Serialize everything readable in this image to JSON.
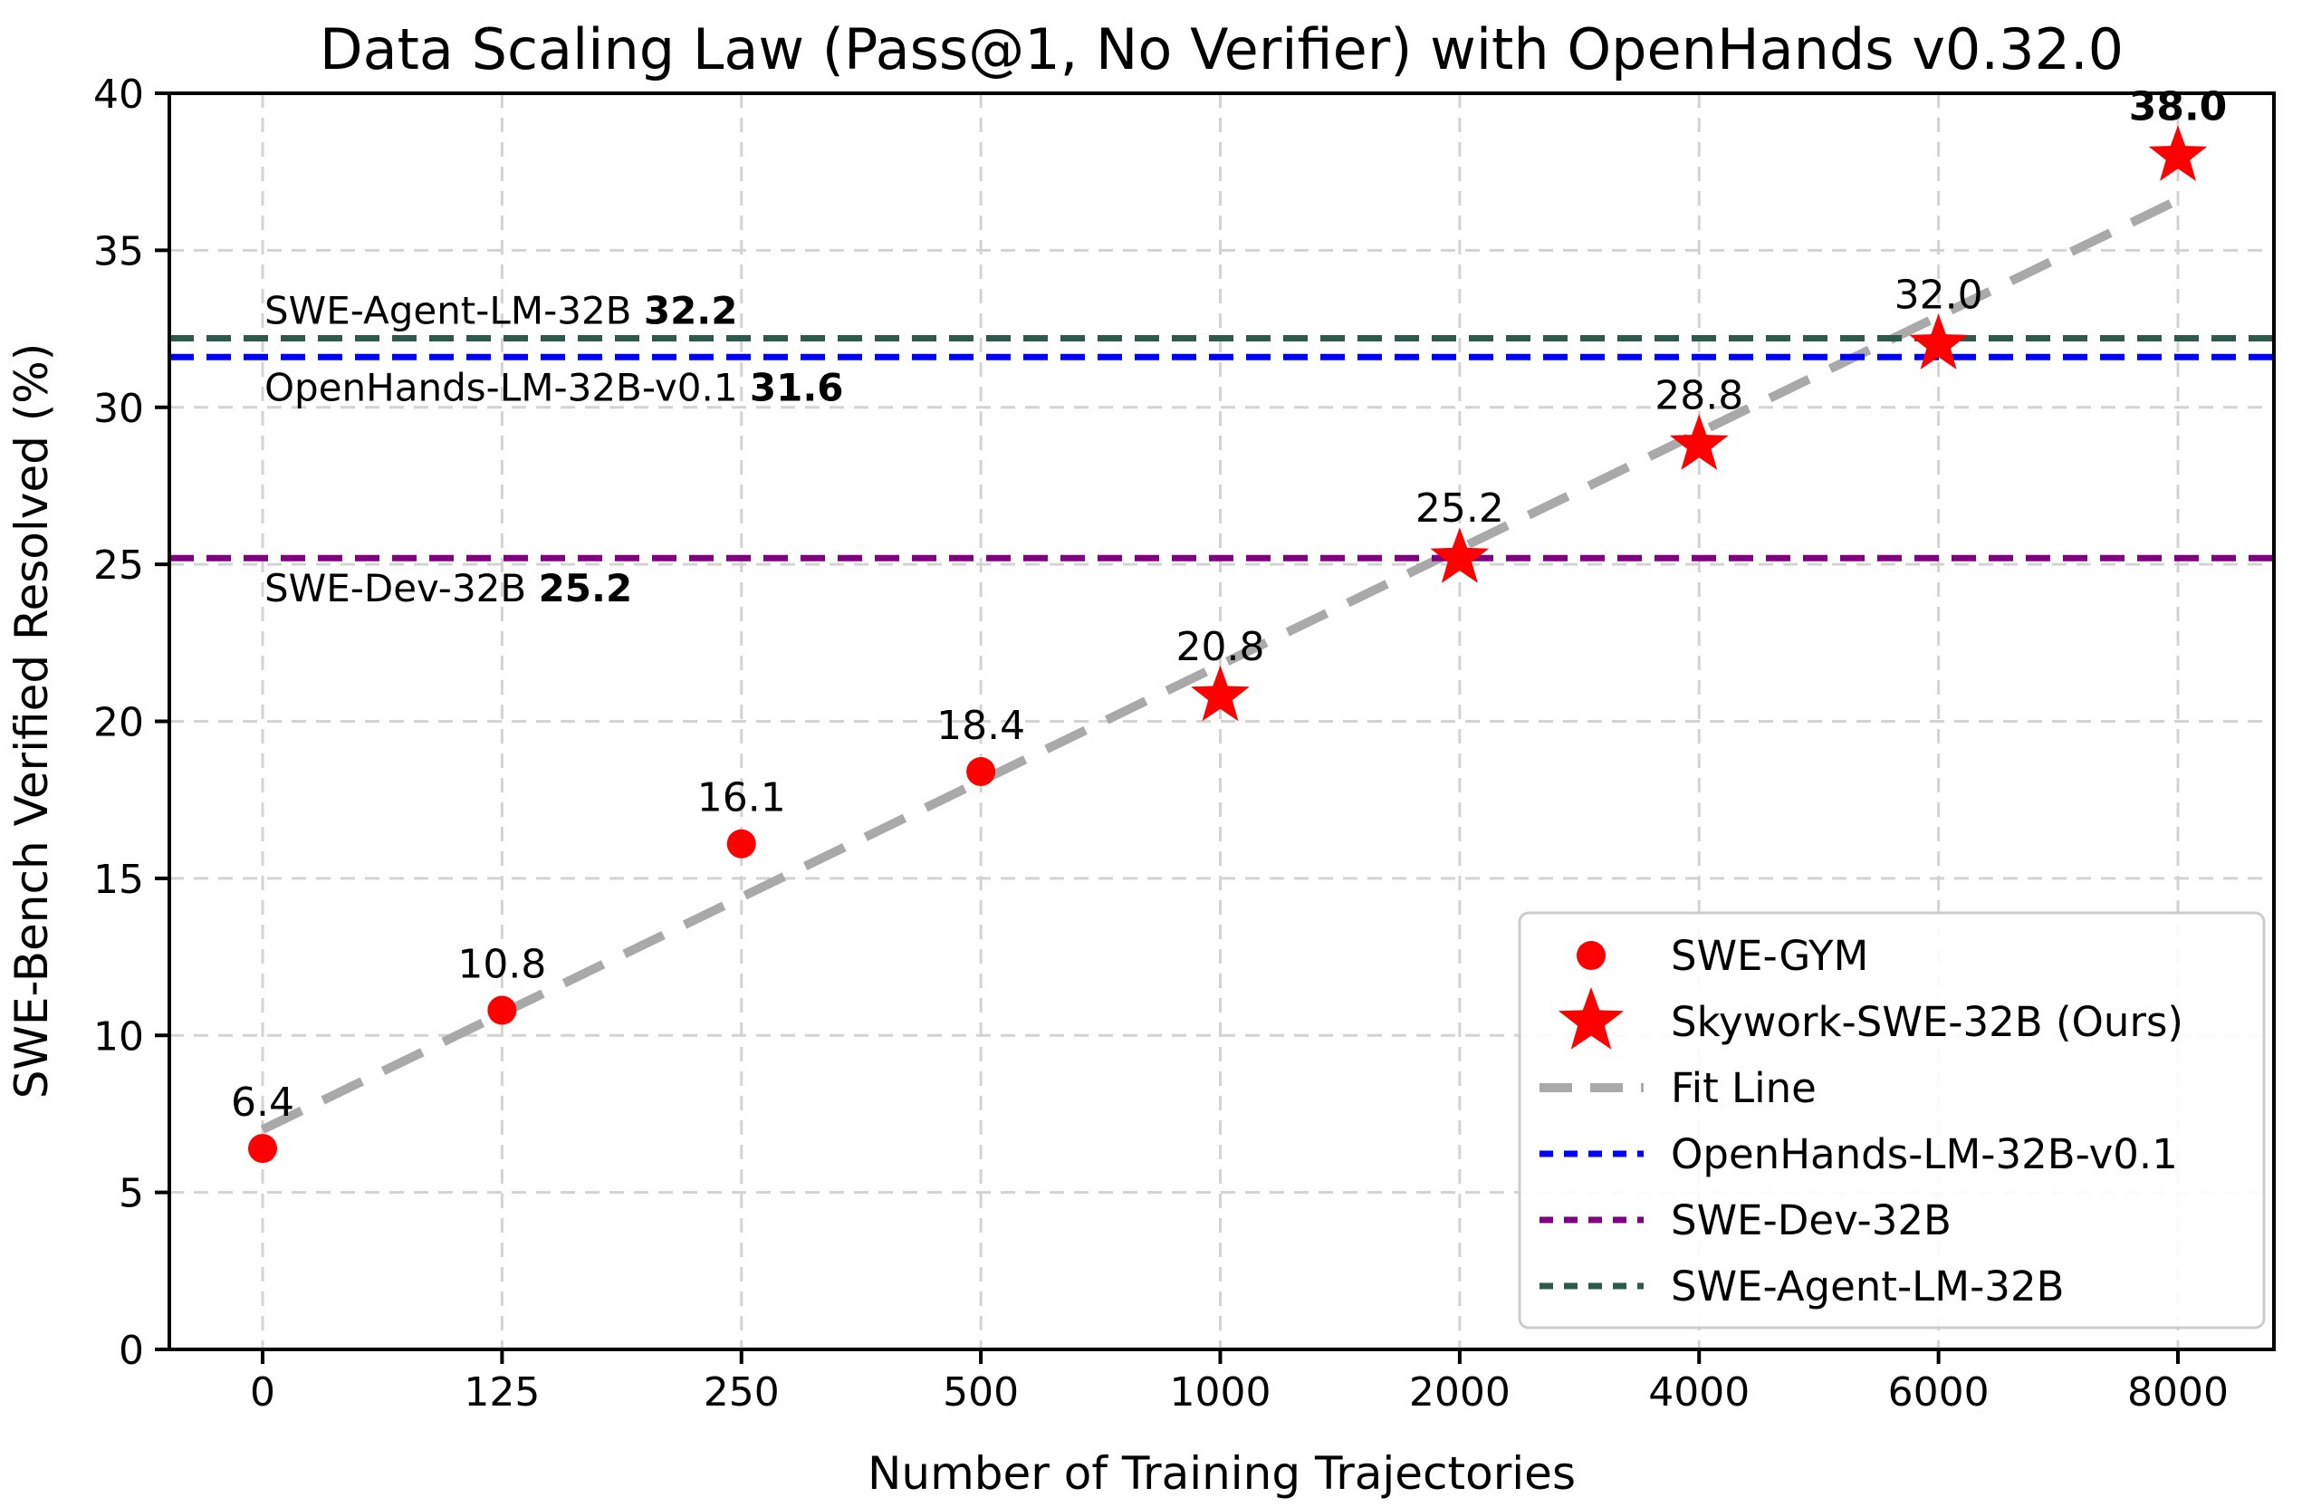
{
  "chart_data": {
    "type": "scatter",
    "title": "Data Scaling Law (Pass@1, No Verifier) with OpenHands v0.32.0",
    "xlabel": "Number of Training Trajectories",
    "ylabel": "SWE-Bench Verified Resolved (%)",
    "x_categories": [
      "0",
      "125",
      "250",
      "500",
      "1000",
      "2000",
      "4000",
      "6000",
      "8000"
    ],
    "y_ticks": [
      "0",
      "5",
      "10",
      "15",
      "20",
      "25",
      "30",
      "35",
      "40"
    ],
    "ylim": [
      0,
      40
    ],
    "grid": true,
    "legend_position": "lower right",
    "series": [
      {
        "name": "SWE-GYM",
        "marker": "circle",
        "color": "#ff0000",
        "x": [
          "0",
          "125",
          "250",
          "500"
        ],
        "values": [
          6.4,
          10.8,
          16.1,
          18.4
        ],
        "labels": [
          "6.4",
          "10.8",
          "16.1",
          "18.4"
        ],
        "bold_labels": []
      },
      {
        "name": "Skywork-SWE-32B (Ours)",
        "marker": "star",
        "color": "#ff0000",
        "x": [
          "1000",
          "2000",
          "4000",
          "6000",
          "8000"
        ],
        "values": [
          20.8,
          25.2,
          28.8,
          32.0,
          38.0
        ],
        "labels": [
          "20.8",
          "25.2",
          "28.8",
          "32.0",
          "38.0"
        ],
        "bold_labels": [
          "38.0"
        ]
      }
    ],
    "fit_line": {
      "name": "Fit Line",
      "color": "#a9a9a9",
      "endpoints_index_value": [
        [
          0,
          7.0
        ],
        [
          8,
          36.6
        ]
      ]
    },
    "reference_lines": [
      {
        "name": "SWE-Agent-LM-32B",
        "value": 32.2,
        "color": "#2e5a4b",
        "annotation_label": "SWE-Agent-LM-32B",
        "annotation_value": "32.2",
        "annotation_placement": "above"
      },
      {
        "name": "OpenHands-LM-32B-v0.1",
        "value": 31.6,
        "color": "#0000ff",
        "annotation_label": "OpenHands-LM-32B-v0.1",
        "annotation_value": "31.6",
        "annotation_placement": "below"
      },
      {
        "name": "SWE-Dev-32B",
        "value": 25.2,
        "color": "#800080",
        "annotation_label": "SWE-Dev-32B",
        "annotation_value": "25.2",
        "annotation_placement": "below"
      }
    ],
    "legend": [
      {
        "label": "SWE-GYM",
        "swatch": "circle",
        "color": "#ff0000"
      },
      {
        "label": "Skywork-SWE-32B (Ours)",
        "swatch": "star",
        "color": "#ff0000"
      },
      {
        "label": "Fit Line",
        "swatch": "dash-thick",
        "color": "#a9a9a9"
      },
      {
        "label": "OpenHands-LM-32B-v0.1",
        "swatch": "dash",
        "color": "#0000ff"
      },
      {
        "label": "SWE-Dev-32B",
        "swatch": "dash",
        "color": "#800080"
      },
      {
        "label": "SWE-Agent-LM-32B",
        "swatch": "dash",
        "color": "#2e5a4b"
      }
    ]
  }
}
